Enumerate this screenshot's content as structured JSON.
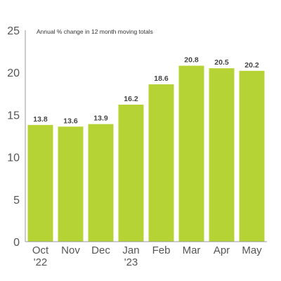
{
  "chart_data": {
    "type": "bar",
    "title": "",
    "subtitle": "Annual % change in 12 month moving totals",
    "xlabel": "",
    "ylabel": "",
    "categories": [
      [
        "Oct",
        "'22"
      ],
      [
        "Nov"
      ],
      [
        "Dec"
      ],
      [
        "Jan",
        "'23"
      ],
      [
        "Feb"
      ],
      [
        "Mar"
      ],
      [
        "Apr"
      ],
      [
        "May"
      ]
    ],
    "values": [
      13.8,
      13.6,
      13.9,
      16.2,
      18.6,
      20.8,
      20.5,
      20.2
    ],
    "data_labels": [
      "13.8",
      "13.6",
      "13.9",
      "16.2",
      "18.6",
      "20.8",
      "20.5",
      "20.2"
    ],
    "ylim": [
      0,
      25
    ],
    "yticks": [
      0,
      5,
      10,
      15,
      20,
      25
    ],
    "grid": false,
    "legend": "none",
    "bar_color": "#b5d334",
    "axis_color": "#9a9a9a"
  }
}
